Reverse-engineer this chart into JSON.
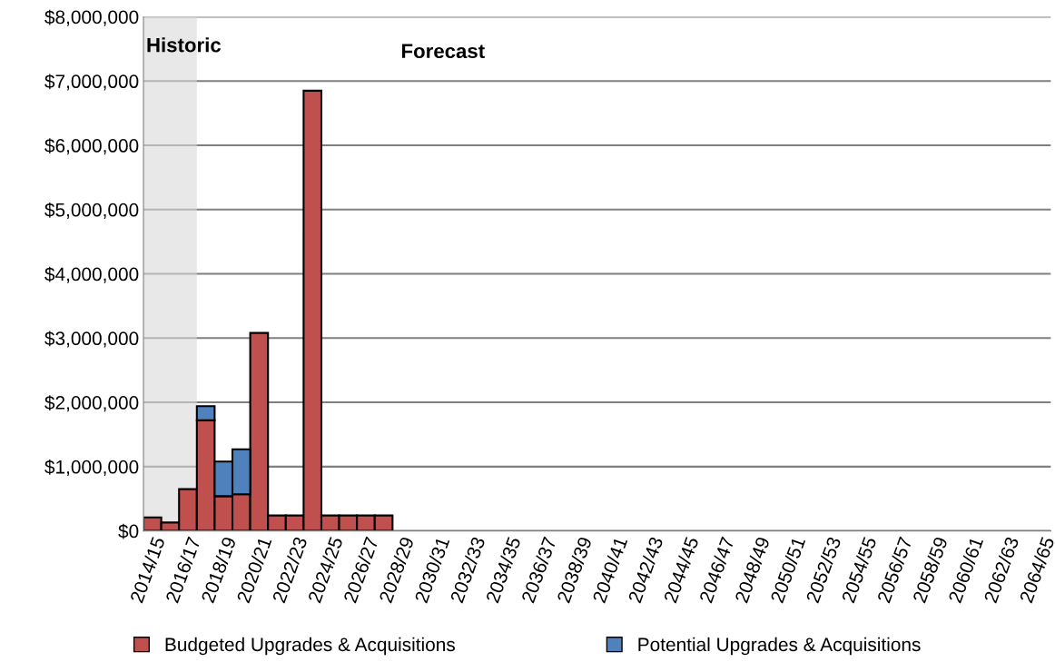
{
  "chart_data": {
    "type": "bar",
    "stacked": true,
    "categories": [
      "2014/15",
      null,
      "2016/17",
      null,
      "2018/19",
      null,
      "2020/21",
      null,
      "2022/23",
      null,
      "2024/25",
      null,
      "2026/27",
      null,
      "2028/29",
      null,
      "2030/31",
      null,
      "2032/33",
      null,
      "2034/35",
      null,
      "2036/37",
      null,
      "2038/39",
      null,
      "2040/41",
      null,
      "2042/43",
      null,
      "2044/45",
      null,
      "2046/47",
      null,
      "2048/49",
      null,
      "2050/51",
      null,
      "2052/53",
      null,
      "2054/55",
      null,
      "2056/57",
      null,
      "2058/59",
      null,
      "2060/61",
      null,
      "2062/63",
      null,
      "2064/65"
    ],
    "series": [
      {
        "name": "Budgeted Upgrades & Acquisitions",
        "color": "#c0504d",
        "values": [
          210000,
          130000,
          650000,
          1720000,
          540000,
          570000,
          3080000,
          240000,
          240000,
          6850000,
          240000,
          240000,
          240000,
          240000,
          0,
          0,
          0,
          0,
          0,
          0,
          0,
          0,
          0,
          0,
          0,
          0,
          0,
          0,
          0,
          0,
          0,
          0,
          0,
          0,
          0,
          0,
          0,
          0,
          0,
          0,
          0,
          0,
          0,
          0,
          0,
          0,
          0,
          0,
          0,
          0,
          0
        ]
      },
      {
        "name": "Potential Upgrades & Acquisitions",
        "color": "#4f81bd",
        "values": [
          0,
          0,
          0,
          220000,
          540000,
          700000,
          0,
          0,
          0,
          0,
          0,
          0,
          0,
          0,
          0,
          0,
          0,
          0,
          0,
          0,
          0,
          0,
          0,
          0,
          0,
          0,
          0,
          0,
          0,
          0,
          0,
          0,
          0,
          0,
          0,
          0,
          0,
          0,
          0,
          0,
          0,
          0,
          0,
          0,
          0,
          0,
          0,
          0,
          0,
          0,
          0
        ]
      }
    ],
    "ylim": [
      0,
      8000000
    ],
    "yticks": [
      {
        "value": 0,
        "label": "$0"
      },
      {
        "value": 1000000,
        "label": "$1,000,000"
      },
      {
        "value": 2000000,
        "label": "$2,000,000"
      },
      {
        "value": 3000000,
        "label": "$3,000,000"
      },
      {
        "value": 4000000,
        "label": "$4,000,000"
      },
      {
        "value": 5000000,
        "label": "$5,000,000"
      },
      {
        "value": 6000000,
        "label": "$6,000,000"
      },
      {
        "value": 7000000,
        "label": "$7,000,000"
      },
      {
        "value": 8000000,
        "label": "$8,000,000"
      }
    ],
    "bands": [
      {
        "axis": "x",
        "from": "2014/15",
        "to": "2016/17",
        "label": "Historic",
        "color": "#d9d9d9"
      }
    ],
    "annotations": [
      "Forecast"
    ],
    "grid": "y",
    "legend": "bottom"
  }
}
